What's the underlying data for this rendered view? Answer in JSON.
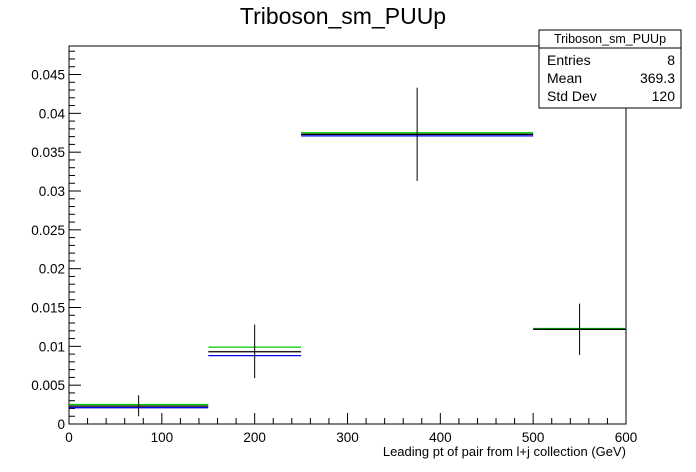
{
  "chart_data": {
    "type": "line",
    "title": "Triboson_sm_PUUp",
    "xlabel": "Leading pt of pair from l+j collection (GeV)",
    "ylabel": "",
    "xlim": [
      0,
      600
    ],
    "ylim": [
      0,
      0.04867
    ],
    "xticks": [
      0,
      100,
      200,
      300,
      400,
      500,
      600
    ],
    "xtick_labels": [
      "0",
      "100",
      "200",
      "300",
      "400",
      "500",
      "600"
    ],
    "yticks": [
      0,
      0.005,
      0.01,
      0.015,
      0.02,
      0.025,
      0.03,
      0.035,
      0.04,
      0.045
    ],
    "ytick_labels": [
      "0",
      "0.005",
      "0.01",
      "0.015",
      "0.02",
      "0.025",
      "0.03",
      "0.035",
      "0.04",
      "0.045"
    ],
    "grid": false,
    "legend": "none",
    "bins": [
      {
        "low": 0,
        "high": 150
      },
      {
        "low": 150,
        "high": 250
      },
      {
        "low": 250,
        "high": 500
      },
      {
        "low": 500,
        "high": 600
      }
    ],
    "series": [
      {
        "color": "#000000",
        "values": [
          0.0023,
          0.0093,
          0.0373,
          0.0122
        ],
        "errors": [
          {
            "x": 75,
            "lo": 0.001,
            "hi": 0.0037
          },
          {
            "x": 200,
            "lo": 0.0059,
            "hi": 0.0128
          },
          {
            "x": 375,
            "lo": 0.0313,
            "hi": 0.0433
          },
          {
            "x": 550,
            "lo": 0.0089,
            "hi": 0.0155
          }
        ]
      },
      {
        "color": "#00cc00",
        "values": [
          0.0025,
          0.0099,
          0.0375,
          0.0123
        ]
      },
      {
        "color": "#0000ee",
        "values": [
          0.0021,
          0.0088,
          0.0371,
          0.0122
        ]
      }
    ],
    "stats_box": {
      "title": "Triboson_sm_PUUp",
      "rows": [
        {
          "label": "Entries",
          "value": "8"
        },
        {
          "label": "Mean",
          "value": "369.3"
        },
        {
          "label": "Std Dev",
          "value": "120"
        }
      ]
    }
  }
}
